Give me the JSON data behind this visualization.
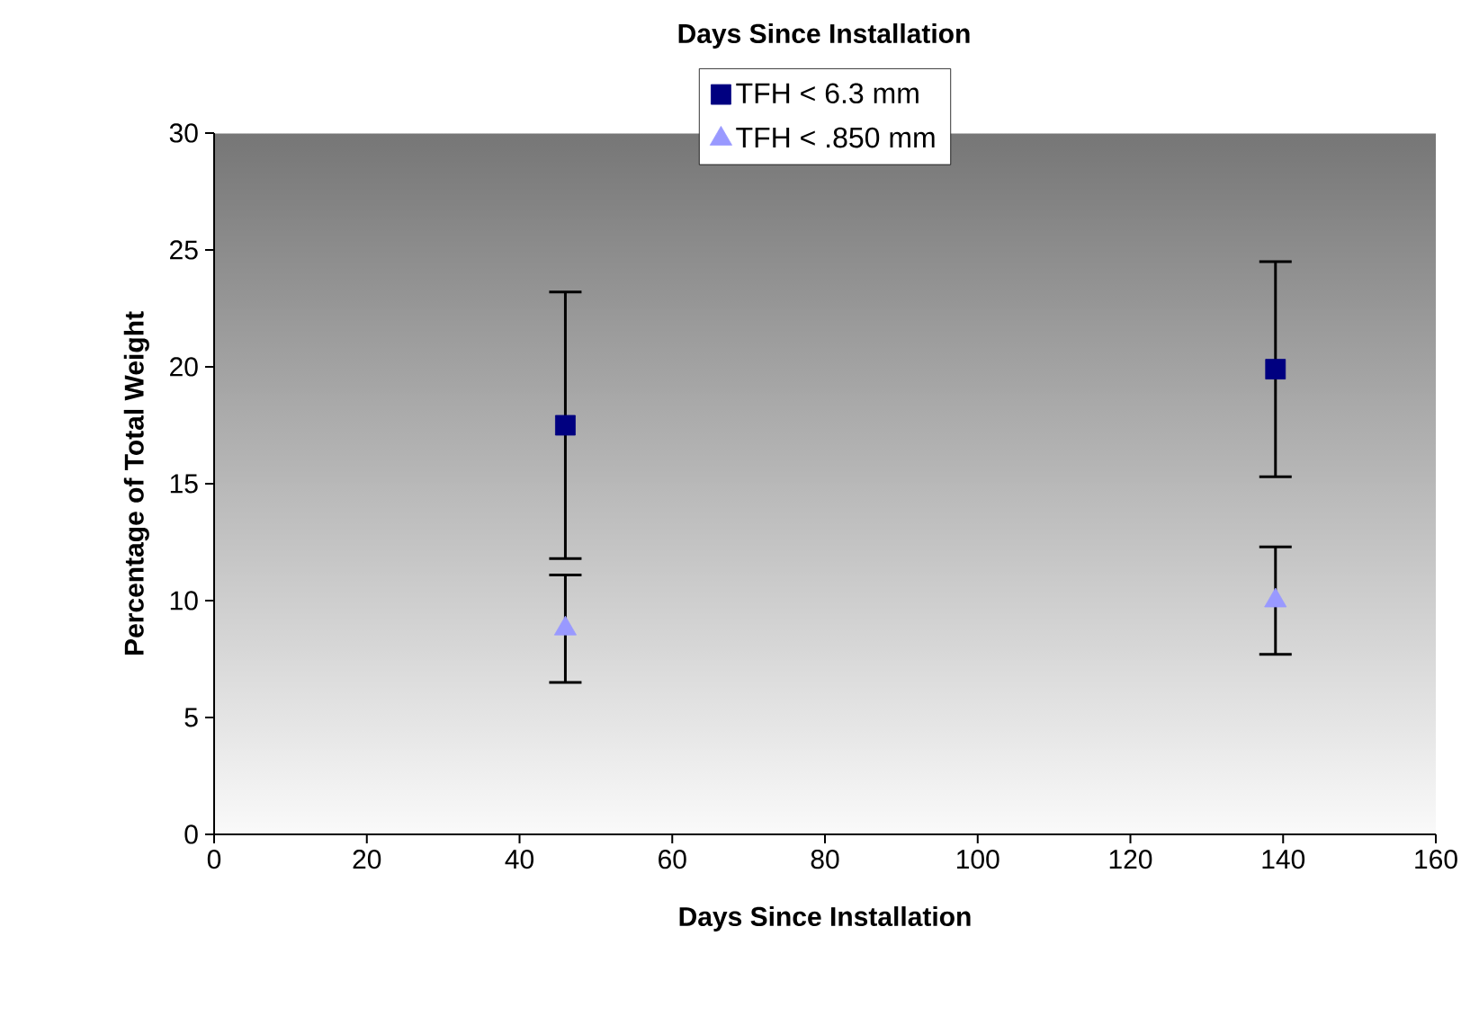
{
  "chart_data": {
    "type": "scatter",
    "title": "Days Since Installation",
    "xlabel": "Days Since Installation",
    "ylabel": "Percentage of Total Weight",
    "xlim": [
      0,
      160
    ],
    "xticks": [
      0,
      20,
      40,
      60,
      80,
      100,
      120,
      140,
      160
    ],
    "ylim": [
      0,
      30
    ],
    "yticks": [
      0,
      5,
      10,
      15,
      20,
      25,
      30
    ],
    "grid": false,
    "legend": "top",
    "x": [
      46,
      139
    ],
    "series": [
      {
        "name": "TFH < 6.3 mm",
        "color": "#000080",
        "marker": "square",
        "values": [
          17.5,
          19.9
        ],
        "errors": [
          5.7,
          4.6
        ]
      },
      {
        "name": "TFH < .850 mm",
        "color": "#9999ff",
        "marker": "triangle",
        "values": [
          8.8,
          10.0
        ],
        "errors": [
          2.3,
          2.3
        ]
      }
    ]
  }
}
